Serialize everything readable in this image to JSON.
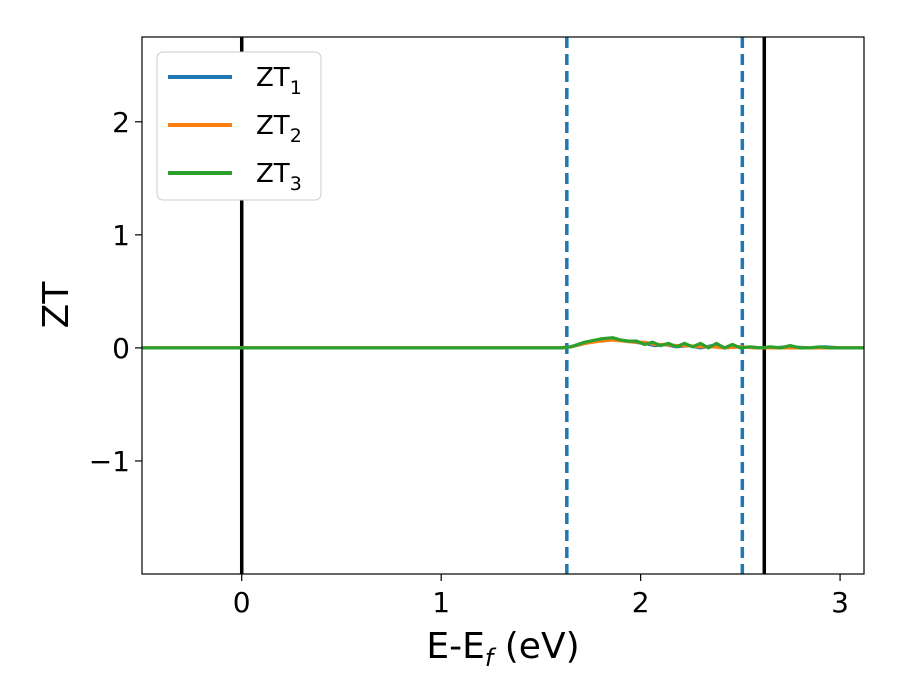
{
  "chart_data": {
    "type": "line",
    "xlabel": "E-E",
    "xlabel_sub": "f",
    "xlabel_unit": " (eV)",
    "ylabel": "ZT",
    "xlim": [
      -0.5,
      3.12
    ],
    "ylim": [
      -2.0,
      2.75
    ],
    "xticks": [
      0,
      1,
      2,
      3
    ],
    "xtick_labels": [
      "0",
      "1",
      "2",
      "3"
    ],
    "yticks": [
      -1,
      0,
      1,
      2
    ],
    "ytick_labels": [
      "−1",
      "0",
      "1",
      "2"
    ],
    "grid": false,
    "legend_position": "top-left",
    "vertical_lines": [
      {
        "x": 0.0,
        "style": "solid",
        "color": "#000000"
      },
      {
        "x": 2.62,
        "style": "solid",
        "color": "#000000"
      },
      {
        "x": 1.63,
        "style": "dashed",
        "color": "#1f77b4"
      },
      {
        "x": 2.51,
        "style": "dashed",
        "color": "#1f77b4"
      }
    ],
    "series": [
      {
        "name": "ZT",
        "name_sub": "1",
        "color": "#1f77b4",
        "x": [
          -0.5,
          1.6,
          1.65,
          1.72,
          1.8,
          1.86,
          1.92,
          1.97,
          2.02,
          2.07,
          2.12,
          2.18,
          2.24,
          2.3,
          2.36,
          2.42,
          2.5,
          2.58,
          2.66,
          2.74,
          2.85,
          2.92,
          3.0,
          3.12
        ],
        "y": [
          0.0,
          0.0,
          0.01,
          0.04,
          0.07,
          0.08,
          0.06,
          0.05,
          0.04,
          0.02,
          0.03,
          0.01,
          0.02,
          0.0,
          0.02,
          0.0,
          0.01,
          0.0,
          0.0,
          0.01,
          0.0,
          0.01,
          0.0,
          0.0
        ]
      },
      {
        "name": "ZT",
        "name_sub": "2",
        "color": "#ff7f0e",
        "x": [
          -0.5,
          1.6,
          1.65,
          1.72,
          1.8,
          1.86,
          1.92,
          1.97,
          2.02,
          2.07,
          2.12,
          2.18,
          2.24,
          2.3,
          2.36,
          2.42,
          2.5,
          2.58,
          2.66,
          2.74,
          2.85,
          2.92,
          3.0,
          3.12
        ],
        "y": [
          0.0,
          0.0,
          0.01,
          0.04,
          0.06,
          0.07,
          0.06,
          0.05,
          0.05,
          0.03,
          0.03,
          0.02,
          0.02,
          0.01,
          0.01,
          0.0,
          0.01,
          0.0,
          0.0,
          0.0,
          0.0,
          0.0,
          0.0,
          0.0
        ]
      },
      {
        "name": "ZT",
        "name_sub": "3",
        "color": "#2ca02c",
        "x": [
          -0.5,
          1.6,
          1.65,
          1.72,
          1.8,
          1.86,
          1.9,
          1.94,
          1.98,
          2.02,
          2.06,
          2.1,
          2.14,
          2.18,
          2.22,
          2.26,
          2.3,
          2.34,
          2.38,
          2.42,
          2.46,
          2.5,
          2.55,
          2.6,
          2.65,
          2.7,
          2.75,
          2.8,
          2.85,
          2.9,
          2.95,
          3.0,
          3.12
        ],
        "y": [
          0.0,
          0.0,
          0.01,
          0.05,
          0.08,
          0.09,
          0.07,
          0.06,
          0.06,
          0.03,
          0.05,
          0.02,
          0.04,
          0.01,
          0.04,
          0.01,
          0.04,
          0.0,
          0.04,
          0.0,
          0.03,
          0.0,
          0.01,
          0.0,
          0.01,
          0.0,
          0.02,
          0.0,
          0.0,
          0.01,
          0.0,
          0.0,
          0.0
        ]
      }
    ]
  }
}
